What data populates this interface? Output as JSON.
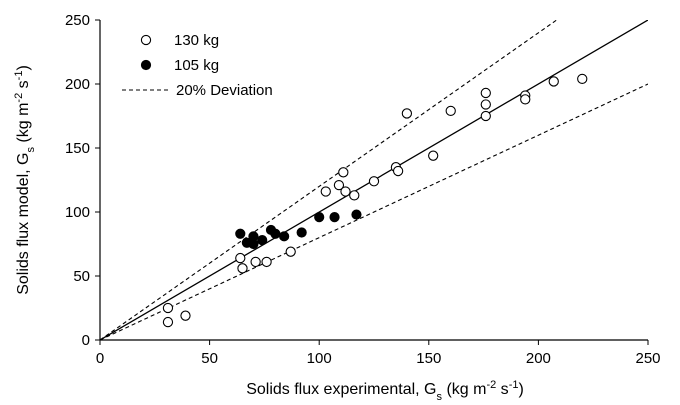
{
  "chart_data": {
    "type": "scatter",
    "xlabel": {
      "main": "Solids flux experimental,  G",
      "sub": "s",
      "unit": " (kg m",
      "sup1": "-2",
      "mid": " s",
      "sup2": "-1",
      "end": ")"
    },
    "ylabel": {
      "main": "Solids flux model,  G",
      "sub": "s",
      "unit": " (kg m",
      "sup1": "-2",
      "mid": " s",
      "sup2": "-1",
      "end": ")"
    },
    "xlim": [
      0,
      250
    ],
    "ylim": [
      0,
      250
    ],
    "xticks": [
      "0",
      "50",
      "100",
      "150",
      "200",
      "250"
    ],
    "yticks": [
      "0",
      "50",
      "100",
      "150",
      "200",
      "250"
    ],
    "grid": false,
    "legend_position": "top-left",
    "series": [
      {
        "name": "130 kg",
        "marker": "open-circle",
        "points": [
          [
            31,
            25
          ],
          [
            31,
            14
          ],
          [
            39,
            19
          ],
          [
            64,
            64
          ],
          [
            65,
            56
          ],
          [
            71,
            61
          ],
          [
            76,
            61
          ],
          [
            87,
            69
          ],
          [
            103,
            116
          ],
          [
            109,
            121
          ],
          [
            111,
            131
          ],
          [
            112,
            116
          ],
          [
            116,
            113
          ],
          [
            125,
            124
          ],
          [
            135,
            135
          ],
          [
            136,
            132
          ],
          [
            140,
            177
          ],
          [
            152,
            144
          ],
          [
            160,
            179
          ],
          [
            176,
            193
          ],
          [
            176,
            184
          ],
          [
            176,
            175
          ],
          [
            194,
            191
          ],
          [
            194,
            188
          ],
          [
            207,
            202
          ],
          [
            220,
            204
          ]
        ]
      },
      {
        "name": "105 kg",
        "marker": "filled-circle",
        "points": [
          [
            64,
            83
          ],
          [
            67,
            76
          ],
          [
            70,
            75
          ],
          [
            70,
            81
          ],
          [
            74,
            78
          ],
          [
            78,
            86
          ],
          [
            80,
            83
          ],
          [
            84,
            81
          ],
          [
            92,
            84
          ],
          [
            100,
            96
          ],
          [
            107,
            96
          ],
          [
            117,
            98
          ]
        ]
      }
    ],
    "reference_lines": [
      {
        "name": "parity",
        "style": "solid",
        "slope": 1.0
      },
      {
        "name": "20% Deviation",
        "style": "dashed",
        "slope": 1.2
      },
      {
        "name": "20% Deviation",
        "style": "dashed",
        "slope": 0.8
      }
    ]
  }
}
